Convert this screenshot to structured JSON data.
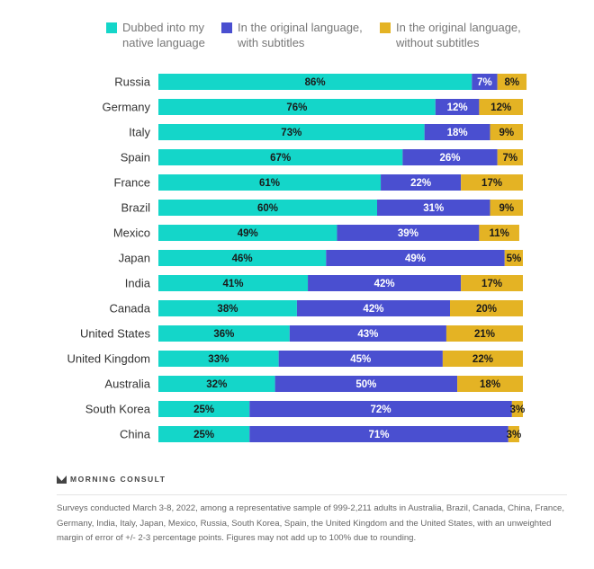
{
  "chart_data": {
    "type": "bar",
    "stacked": true,
    "orientation": "horizontal",
    "legend_position": "top",
    "series": [
      {
        "name": "Dubbed into my native language",
        "color": "#14d6c9",
        "label_color": "#1a1a1a"
      },
      {
        "name": "In the original language, with subtitles",
        "color": "#4a4fd0",
        "label_color": "#ffffff"
      },
      {
        "name": "In the original language, without subtitles",
        "color": "#e4b324",
        "label_color": "#1a1a1a"
      }
    ],
    "categories": [
      "Russia",
      "Germany",
      "Italy",
      "Spain",
      "France",
      "Brazil",
      "Mexico",
      "Japan",
      "India",
      "Canada",
      "United States",
      "United Kingdom",
      "Australia",
      "South Korea",
      "China"
    ],
    "values": [
      [
        86,
        7,
        8
      ],
      [
        76,
        12,
        12
      ],
      [
        73,
        18,
        9
      ],
      [
        67,
        26,
        7
      ],
      [
        61,
        22,
        17
      ],
      [
        60,
        31,
        9
      ],
      [
        49,
        39,
        11
      ],
      [
        46,
        49,
        5
      ],
      [
        41,
        42,
        17
      ],
      [
        38,
        42,
        20
      ],
      [
        36,
        43,
        21
      ],
      [
        33,
        45,
        22
      ],
      [
        32,
        50,
        18
      ],
      [
        25,
        72,
        3
      ],
      [
        25,
        71,
        3
      ]
    ],
    "unit": "%",
    "xlim": [
      0,
      101
    ]
  },
  "legend": [
    "Dubbed into my",
    "native language",
    "In the original language,",
    "with subtitles",
    "In the original language,",
    "without subtitles"
  ],
  "footer": {
    "logo": "MORNING CONSULT",
    "note": "Surveys conducted March 3-8, 2022, among a representative sample of 999-2,211 adults in Australia, Brazil, Canada, China, France, Germany, India, Italy, Japan, Mexico, Russia, South Korea, Spain, the United Kingdom and the United States, with an unweighted margin of error of +/- 2-3 percentage points. Figures may not add up to 100% due to rounding."
  }
}
